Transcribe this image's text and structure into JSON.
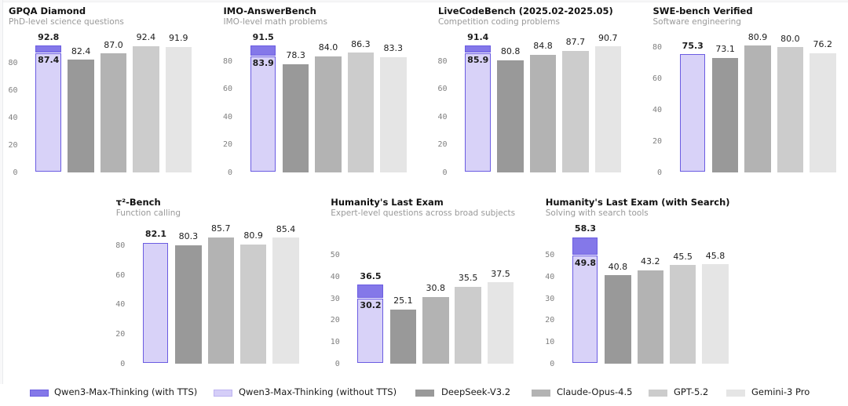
{
  "figure": {
    "background": "#ffffff",
    "colors": {
      "qwen_with_tts_fill": "#8478e9",
      "qwen_with_tts_edge": "#6d5fe0",
      "qwen_without_tts_fill": "#d8d2f8",
      "qwen_without_tts_legend_fill": "#d5cef8",
      "qwen_without_tts_legend_edge": "#bdb3f1",
      "bar_edge_purple": "#6b5ce2",
      "deepseek_gray": "#999999",
      "claude_gray": "#b3b3b3",
      "gpt_gray": "#cccccc",
      "gemini_gray": "#e5e5e5",
      "title_color": "#111111",
      "subtitle_color": "#999999",
      "tick_color": "#808080",
      "value_label_color": "#1c1c1c"
    }
  },
  "series_names": [
    "Qwen3-Max-Thinking (with TTS)",
    "Qwen3-Max-Thinking (without TTS)",
    "DeepSeek-V3.2",
    "Claude-Opus-4.5",
    "GPT-5.2",
    "Gemini-3 Pro"
  ],
  "chart_data": [
    {
      "type": "bar",
      "title": "GPQA Diamond",
      "subtitle": "PhD-level science questions",
      "row": 0,
      "col": 0,
      "categories": [
        "Qwen3-Max-Thinking",
        "DeepSeek-V3.2",
        "Claude-Opus-4.5",
        "GPT-5.2",
        "Gemini-3 Pro"
      ],
      "qwen_with_tts": 92.8,
      "qwen_without_tts": 87.4,
      "values": [
        87.4,
        82.4,
        87.0,
        92.4,
        91.9
      ],
      "labels": [
        "92.8",
        "87.4",
        "82.4",
        "87.0",
        "92.4",
        "91.9"
      ],
      "yticks": [
        0,
        20,
        40,
        60,
        80
      ],
      "ylim": [
        0,
        102.1
      ],
      "grid": false
    },
    {
      "type": "bar",
      "title": "IMO-AnswerBench",
      "subtitle": "IMO-level math problems",
      "row": 0,
      "col": 1,
      "categories": [
        "Qwen3-Max-Thinking",
        "DeepSeek-V3.2",
        "Claude-Opus-4.5",
        "GPT-5.2",
        "Gemini-3 Pro"
      ],
      "qwen_with_tts": 91.5,
      "qwen_without_tts": 83.9,
      "values": [
        83.9,
        78.3,
        84.0,
        86.3,
        83.3
      ],
      "labels": [
        "91.5",
        "83.9",
        "78.3",
        "84.0",
        "86.3",
        "83.3"
      ],
      "yticks": [
        0,
        20,
        40,
        60,
        80
      ],
      "ylim": [
        0,
        100.7
      ],
      "grid": false
    },
    {
      "type": "bar",
      "title": "LiveCodeBench (2025.02-2025.05)",
      "subtitle": "Competition coding problems",
      "row": 0,
      "col": 2,
      "categories": [
        "Qwen3-Max-Thinking",
        "DeepSeek-V3.2",
        "Claude-Opus-4.5",
        "GPT-5.2",
        "Gemini-3 Pro"
      ],
      "qwen_with_tts": 91.4,
      "qwen_without_tts": 85.9,
      "values": [
        85.9,
        80.8,
        84.8,
        87.7,
        90.7
      ],
      "labels": [
        "91.4",
        "85.9",
        "80.8",
        "84.8",
        "87.7",
        "90.7"
      ],
      "yticks": [
        0,
        20,
        40,
        60,
        80
      ],
      "ylim": [
        0,
        100.5
      ],
      "grid": false
    },
    {
      "type": "bar",
      "title": "SWE-bench Verified",
      "subtitle": "Software engineering",
      "row": 0,
      "col": 3,
      "categories": [
        "Qwen3-Max-Thinking",
        "DeepSeek-V3.2",
        "Claude-Opus-4.5",
        "GPT-5.2",
        "Gemini-3 Pro"
      ],
      "qwen_with_tts": null,
      "qwen_without_tts": 75.3,
      "values": [
        75.3,
        73.1,
        80.9,
        80.0,
        76.2
      ],
      "labels": [
        "75.3",
        "73.1",
        "80.9",
        "80.0",
        "76.2"
      ],
      "yticks": [
        0,
        20,
        40,
        60,
        80
      ],
      "ylim": [
        0,
        89.0
      ],
      "grid": false
    },
    {
      "type": "bar",
      "title": "τ²-Bench",
      "subtitle": "Function calling",
      "row": 1,
      "col": 0,
      "categories": [
        "Qwen3-Max-Thinking",
        "DeepSeek-V3.2",
        "Claude-Opus-4.5",
        "GPT-5.2",
        "Gemini-3 Pro"
      ],
      "qwen_with_tts": null,
      "qwen_without_tts": 82.1,
      "values": [
        82.1,
        80.3,
        85.7,
        80.9,
        85.4
      ],
      "labels": [
        "82.1",
        "80.3",
        "85.7",
        "80.9",
        "85.4"
      ],
      "yticks": [
        0,
        20,
        40,
        60,
        80
      ],
      "ylim": [
        0,
        94.3
      ],
      "grid": false
    },
    {
      "type": "bar",
      "title": "Humanity's Last Exam",
      "subtitle": "Expert-level questions across broad subjects",
      "row": 1,
      "col": 1,
      "categories": [
        "Qwen3-Max-Thinking",
        "DeepSeek-V3.2",
        "Claude-Opus-4.5",
        "GPT-5.2",
        "Gemini-3 Pro"
      ],
      "qwen_with_tts": 36.5,
      "qwen_without_tts": 30.2,
      "values": [
        30.2,
        25.1,
        30.8,
        35.5,
        37.5
      ],
      "labels": [
        "36.5",
        "30.2",
        "25.1",
        "30.8",
        "35.5",
        "37.5"
      ],
      "yticks": [
        0,
        10,
        20,
        30,
        40,
        50
      ],
      "ylim": [
        0,
        64.1
      ],
      "grid": false
    },
    {
      "type": "bar",
      "title": "Humanity's Last Exam (with Search)",
      "subtitle": "Solving with search tools",
      "row": 1,
      "col": 2,
      "categories": [
        "Qwen3-Max-Thinking",
        "DeepSeek-V3.2",
        "Claude-Opus-4.5",
        "GPT-5.2",
        "Gemini-3 Pro"
      ],
      "qwen_with_tts": 58.3,
      "qwen_without_tts": 49.8,
      "values": [
        49.8,
        40.8,
        43.2,
        45.5,
        45.8
      ],
      "labels": [
        "58.3",
        "49.8",
        "40.8",
        "43.2",
        "45.5",
        "45.8"
      ],
      "yticks": [
        0,
        10,
        20,
        30,
        40,
        50
      ],
      "ylim": [
        0,
        64.1
      ],
      "grid": false
    }
  ],
  "legend": {
    "items": [
      {
        "label": "Qwen3-Max-Thinking (with TTS)",
        "fill": "#8478e9",
        "edge": "#6d5fe0"
      },
      {
        "label": "Qwen3-Max-Thinking (without TTS)",
        "fill": "#d5cef8",
        "edge": "#bdb3f1"
      },
      {
        "label": "DeepSeek-V3.2",
        "fill": "#999999",
        "edge": "#999999"
      },
      {
        "label": "Claude-Opus-4.5",
        "fill": "#b3b3b3",
        "edge": "#b3b3b3"
      },
      {
        "label": "GPT-5.2",
        "fill": "#cccccc",
        "edge": "#cccccc"
      },
      {
        "label": "Gemini-3 Pro",
        "fill": "#e5e5e5",
        "edge": "#e5e5e5"
      }
    ]
  }
}
